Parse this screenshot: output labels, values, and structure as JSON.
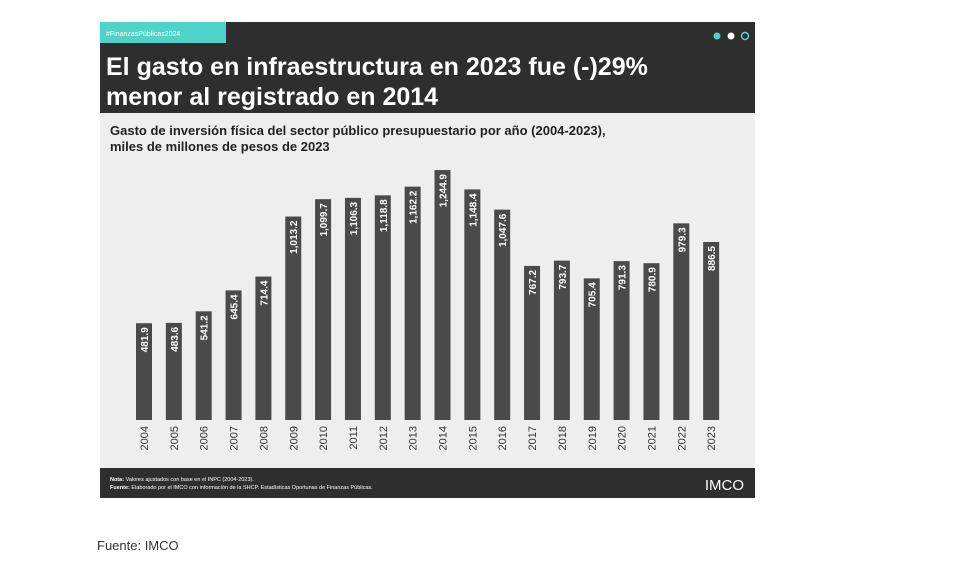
{
  "tag": "#FinanzasPúblicas2024",
  "headline": [
    "El gasto en infraestructura en 2023 fue (-)29%",
    "menor al registrado en 2014"
  ],
  "chart_data": {
    "type": "bar",
    "title": [
      "Gasto de inversión física del sector público presupuestario por año (2004-2023),",
      "miles de millones de pesos de 2023"
    ],
    "categories": [
      "2004",
      "2005",
      "2006",
      "2007",
      "2008",
      "2009",
      "2010",
      "2011",
      "2012",
      "2013",
      "2014",
      "2015",
      "2016",
      "2017",
      "2018",
      "2019",
      "2020",
      "2021",
      "2022",
      "2023"
    ],
    "values": [
      481.9,
      483.6,
      541.2,
      645.4,
      714.4,
      1013.2,
      1099.7,
      1106.3,
      1118.8,
      1162.2,
      1244.9,
      1148.4,
      1047.6,
      767.2,
      793.7,
      705.4,
      791.3,
      780.9,
      979.3,
      886.5
    ],
    "value_labels": [
      "481.9",
      "483.6",
      "541.2",
      "645.4",
      "714.4",
      "1,013.2",
      "1,099.7",
      "1,106.3",
      "1,118.8",
      "1,162.2",
      "1,244.9",
      "1,148.4",
      "1,047.6",
      "767.2",
      "793.7",
      "705.4",
      "791.3",
      "780.9",
      "979.3",
      "886.5"
    ],
    "color": "#4a4a4a"
  },
  "note": {
    "label": "Nota:",
    "text": "Valores ajustados con base en el INPC (2004-2023)."
  },
  "source_note": {
    "label": "Fuente:",
    "text": "Elaborado por el IMCO con información de la SHCP. Estadísticas Oportunas de Finanzas Públicas."
  },
  "logo": "IMCO",
  "caption": "Fuente: IMCO"
}
